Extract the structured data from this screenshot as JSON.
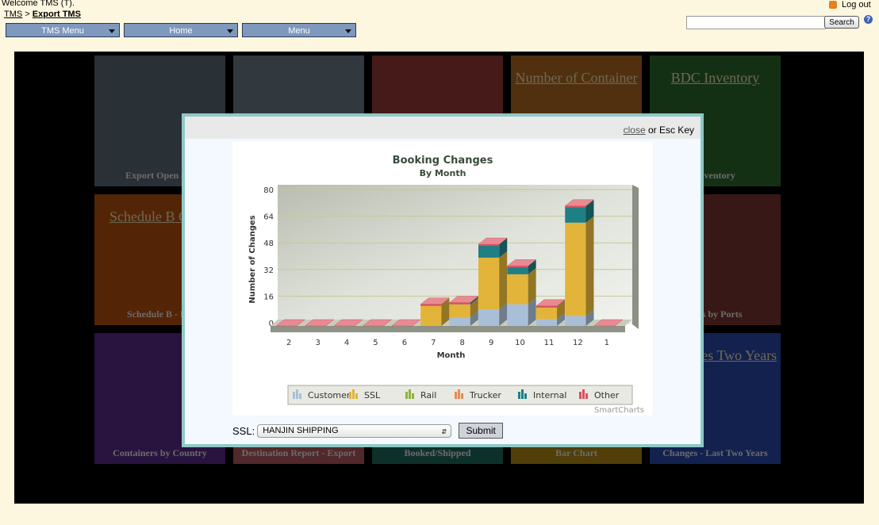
{
  "header": {
    "welcome": "Welcome TMS (T).",
    "breadcrumb": {
      "root": "TMS",
      "sep": ">",
      "current": "Export TMS"
    },
    "nav": [
      "TMS Menu",
      "Home",
      "Menu"
    ],
    "logout": "Log out",
    "search": {
      "value": "",
      "button": "Search"
    },
    "help": "?"
  },
  "tiles": [
    {
      "title": "",
      "label": "Export Open Shi"
    },
    {
      "title": "",
      "label": ""
    },
    {
      "title": "",
      "label": ""
    },
    {
      "title": "Number of Container",
      "label": ""
    },
    {
      "title": "BDC Inventory",
      "label": "Inventory"
    },
    {
      "title": "Schedule B Chart",
      "label": "Schedule B - Pie"
    },
    {
      "title": "",
      "label": ""
    },
    {
      "title": "",
      "label": ""
    },
    {
      "title": "",
      "label": ""
    },
    {
      "title": "",
      "label": "ners by Ports"
    },
    {
      "title": "",
      "label": "Containers by Country"
    },
    {
      "title": "",
      "label": "Destination Report - Export"
    },
    {
      "title": "",
      "label": "Booked/Shipped"
    },
    {
      "title": "",
      "label": "Bar Chart"
    },
    {
      "title": "g Changes Two Years",
      "label": "Changes - Last Two Years"
    }
  ],
  "modal": {
    "close_link": "close",
    "close_suffix": "or Esc Key",
    "ssl_label": "SSL:",
    "ssl_value": "HANJIN SHIPPING",
    "submit": "Submit",
    "credit": "SmartCharts"
  },
  "chart_data": {
    "type": "bar",
    "stacked": true,
    "title": "Booking Changes",
    "subtitle": "By Month",
    "xlabel": "Month",
    "ylabel": "Number of Changes",
    "ylim": [
      0,
      80
    ],
    "yticks": [
      0,
      16,
      32,
      48,
      64,
      80
    ],
    "categories": [
      "2",
      "3",
      "4",
      "5",
      "6",
      "7",
      "8",
      "9",
      "10",
      "11",
      "12",
      "1"
    ],
    "series": [
      {
        "name": "Customer",
        "color": "#a9bfd8",
        "values": [
          0,
          0,
          0,
          0,
          0,
          0,
          5,
          10,
          13,
          4,
          6,
          0
        ]
      },
      {
        "name": "SSL",
        "color": "#e2b43a",
        "values": [
          0,
          0,
          0,
          0,
          0,
          13,
          8,
          31,
          18,
          8,
          56,
          0
        ]
      },
      {
        "name": "Rail",
        "color": "#8fb33a",
        "values": [
          0,
          0,
          0,
          0,
          0,
          0,
          0,
          0,
          0,
          0,
          0,
          0
        ]
      },
      {
        "name": "Trucker",
        "color": "#e88a55",
        "values": [
          0,
          0,
          0,
          0,
          0,
          0,
          0,
          0,
          0,
          0,
          0,
          0
        ]
      },
      {
        "name": "Internal",
        "color": "#1e7f85",
        "values": [
          0,
          0,
          0,
          0,
          0,
          0,
          1,
          8,
          5,
          0,
          10,
          0
        ]
      },
      {
        "name": "Other",
        "color": "#d94f5c",
        "values": [
          0,
          0,
          0,
          0,
          0,
          0,
          0,
          0,
          0,
          0,
          0,
          0
        ]
      }
    ],
    "legend": "bottom",
    "grid": true
  }
}
